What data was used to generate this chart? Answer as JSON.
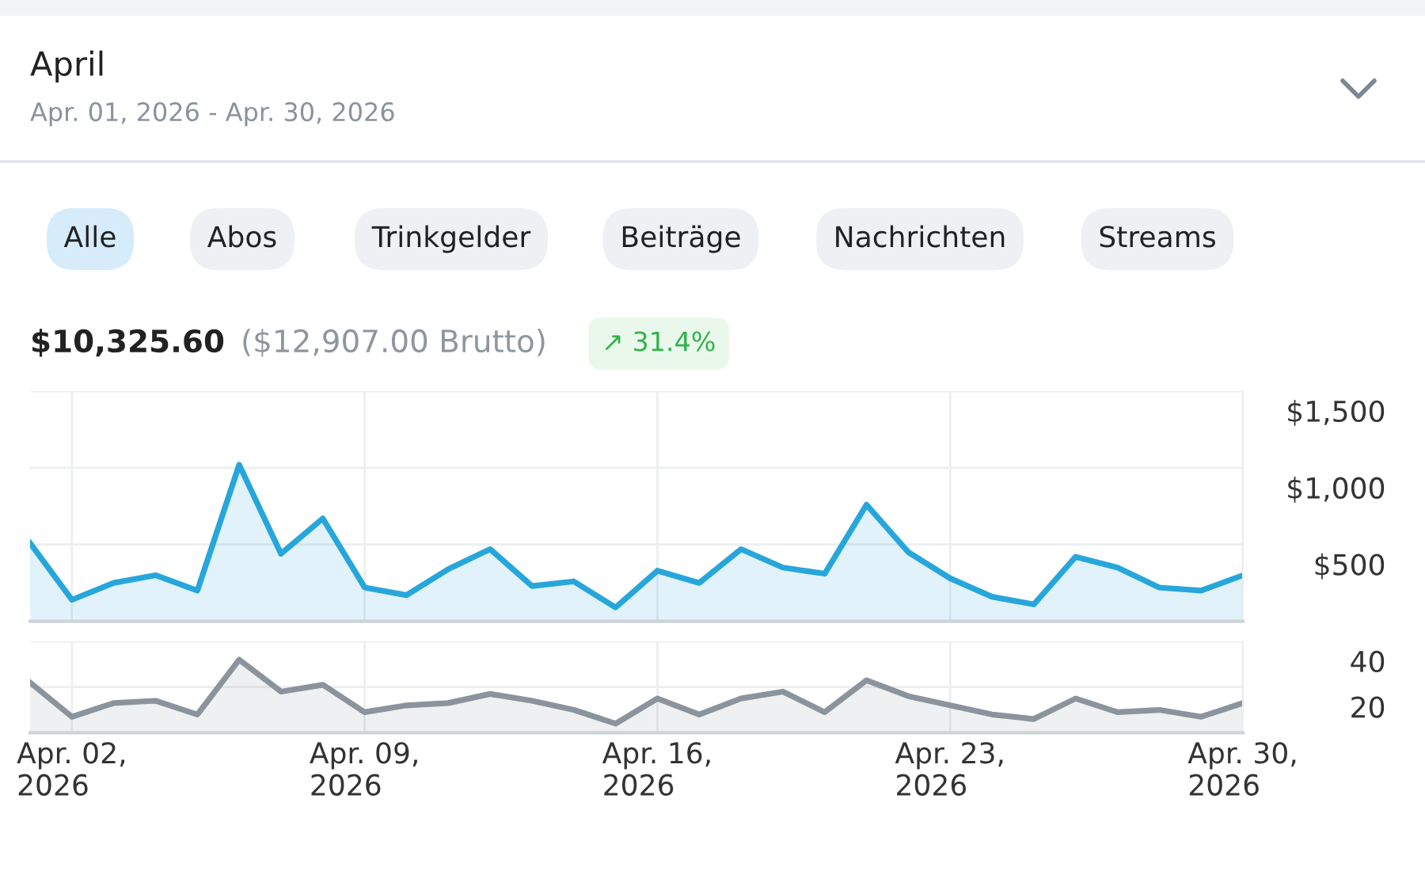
{
  "chart_data": [
    {
      "type": "area",
      "title": "April",
      "subtitle": "Apr. 01, 2026 - Apr. 30, 2026",
      "annotations": [
        "Alle",
        "Abos",
        "Trinkgelder",
        "Beiträge",
        "Nachrichten",
        "Streams",
        "$10,325.60",
        "($12,907.00 Brutto)",
        "↗ 31.4%"
      ],
      "x": [
        "2026-04-01",
        "2026-04-02",
        "2026-04-03",
        "2026-04-04",
        "2026-04-05",
        "2026-04-06",
        "2026-04-07",
        "2026-04-08",
        "2026-04-09",
        "2026-04-10",
        "2026-04-11",
        "2026-04-12",
        "2026-04-13",
        "2026-04-14",
        "2026-04-15",
        "2026-04-16",
        "2026-04-17",
        "2026-04-18",
        "2026-04-19",
        "2026-04-20",
        "2026-04-21",
        "2026-04-22",
        "2026-04-23",
        "2026-04-24",
        "2026-04-25",
        "2026-04-26",
        "2026-04-27",
        "2026-04-28",
        "2026-04-29",
        "2026-04-30"
      ],
      "series": [
        {
          "color": "#27a6db",
          "values": [
            510,
            140,
            250,
            300,
            200,
            1020,
            440,
            670,
            220,
            170,
            340,
            470,
            230,
            260,
            90,
            330,
            250,
            470,
            350,
            310,
            760,
            450,
            280,
            160,
            110,
            420,
            350,
            220,
            200,
            300
          ]
        }
      ],
      "xlim": [
        "2026-04-01",
        "2026-04-30"
      ],
      "xticks": [
        {
          "value": "2026-04-02",
          "label": null
        },
        {
          "value": "2026-04-09",
          "label": null
        },
        {
          "value": "2026-04-16",
          "label": null
        },
        {
          "value": "2026-04-23",
          "label": null
        },
        {
          "value": "2026-04-30",
          "label": null
        }
      ],
      "ylim": [
        0,
        1500
      ],
      "yticks": [
        {
          "value": 0,
          "label": null
        },
        {
          "value": 500,
          "label": "$500"
        },
        {
          "value": 1000,
          "label": "$1,000"
        },
        {
          "value": 1500,
          "label": "$1,500"
        }
      ],
      "grid": true,
      "tick_labels": "y"
    },
    {
      "type": "area",
      "x": [
        "2026-04-01",
        "2026-04-02",
        "2026-04-03",
        "2026-04-04",
        "2026-04-05",
        "2026-04-06",
        "2026-04-07",
        "2026-04-08",
        "2026-04-09",
        "2026-04-10",
        "2026-04-11",
        "2026-04-12",
        "2026-04-13",
        "2026-04-14",
        "2026-04-15",
        "2026-04-16",
        "2026-04-17",
        "2026-04-18",
        "2026-04-19",
        "2026-04-20",
        "2026-04-21",
        "2026-04-22",
        "2026-04-23",
        "2026-04-24",
        "2026-04-25",
        "2026-04-26",
        "2026-04-27",
        "2026-04-28",
        "2026-04-29",
        "2026-04-30"
      ],
      "series": [
        {
          "color": "#8b949d",
          "values": [
            22,
            7,
            13,
            14,
            8,
            32,
            18,
            21,
            9,
            12,
            13,
            17,
            14,
            10,
            4,
            15,
            8,
            15,
            18,
            9,
            23,
            16,
            12,
            8,
            6,
            15,
            9,
            10,
            7,
            13
          ]
        }
      ],
      "xlim": [
        "2026-04-01",
        "2026-04-30"
      ],
      "xticks": [
        {
          "value": "2026-04-02",
          "label": "Apr. 02,\n2026"
        },
        {
          "value": "2026-04-09",
          "label": "Apr. 09,\n2026"
        },
        {
          "value": "2026-04-16",
          "label": "Apr. 16,\n2026"
        },
        {
          "value": "2026-04-23",
          "label": "Apr. 23,\n2026"
        },
        {
          "value": "2026-04-30",
          "label": "Apr. 30,\n2026"
        }
      ],
      "ylim": [
        0,
        40
      ],
      "yticks": [
        {
          "value": 0,
          "label": null
        },
        {
          "value": 20,
          "label": "20"
        },
        {
          "value": 40,
          "label": "40"
        }
      ],
      "grid": true
    }
  ]
}
